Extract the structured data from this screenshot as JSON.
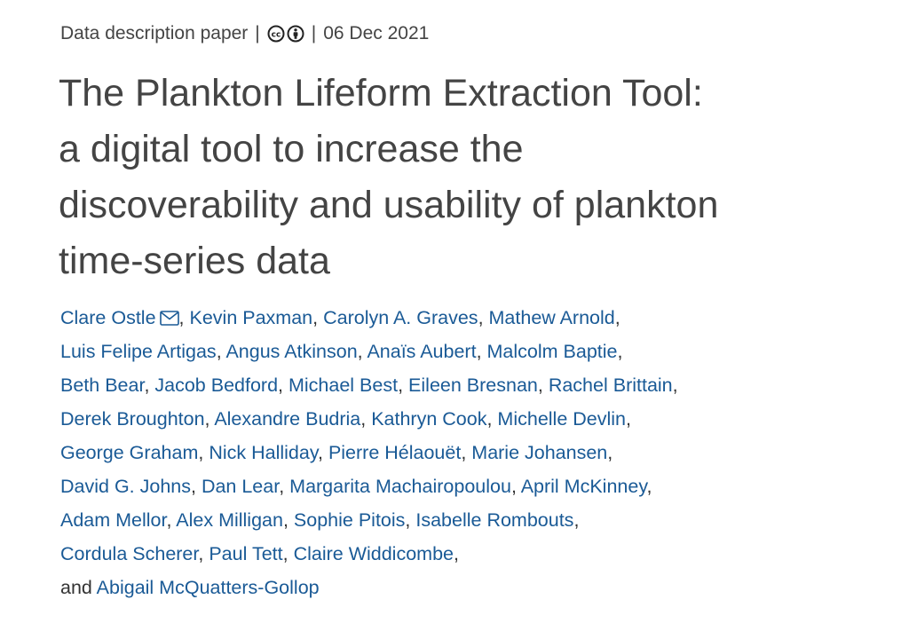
{
  "meta": {
    "type": "Data description paper",
    "separator": "|",
    "license_icons": [
      "cc-icon",
      "by-attribution-icon"
    ],
    "date": "06 Dec 2021"
  },
  "title": "The Plankton Lifeform Extraction Tool: a digital tool to increase the discoverability and usability of plankton time-series data",
  "colors": {
    "text": "#444444",
    "link": "#1a5a96"
  },
  "author_lines": [
    {
      "prefix": "",
      "names": [
        "Clare Ostle",
        "Kevin Paxman",
        "Carolyn A. Graves",
        "Mathew Arnold"
      ],
      "trailing_comma": true
    },
    {
      "prefix": "",
      "names": [
        "Luis Felipe Artigas",
        "Angus Atkinson",
        "Anaïs Aubert",
        "Malcolm Baptie"
      ],
      "trailing_comma": true
    },
    {
      "prefix": "",
      "names": [
        "Beth Bear",
        "Jacob Bedford",
        "Michael Best",
        "Eileen Bresnan",
        "Rachel Brittain"
      ],
      "trailing_comma": true
    },
    {
      "prefix": "",
      "names": [
        "Derek Broughton",
        "Alexandre Budria",
        "Kathryn Cook",
        "Michelle Devlin"
      ],
      "trailing_comma": true
    },
    {
      "prefix": "",
      "names": [
        "George Graham",
        "Nick Halliday",
        "Pierre Hélaouët",
        "Marie Johansen"
      ],
      "trailing_comma": true
    },
    {
      "prefix": "",
      "names": [
        "David G. Johns",
        "Dan Lear",
        "Margarita Machairopoulou",
        "April McKinney"
      ],
      "trailing_comma": true
    },
    {
      "prefix": "",
      "names": [
        "Adam Mellor",
        "Alex Milligan",
        "Sophie Pitois",
        "Isabelle Rombouts"
      ],
      "trailing_comma": true
    },
    {
      "prefix": "",
      "names": [
        "Cordula Scherer",
        "Paul Tett",
        "Claire Widdicombe"
      ],
      "trailing_comma": true
    },
    {
      "prefix": "and ",
      "names": [
        "Abigail McQuatters-Gollop"
      ],
      "trailing_comma": false
    }
  ],
  "corresponding_author_icon": "envelope-icon"
}
